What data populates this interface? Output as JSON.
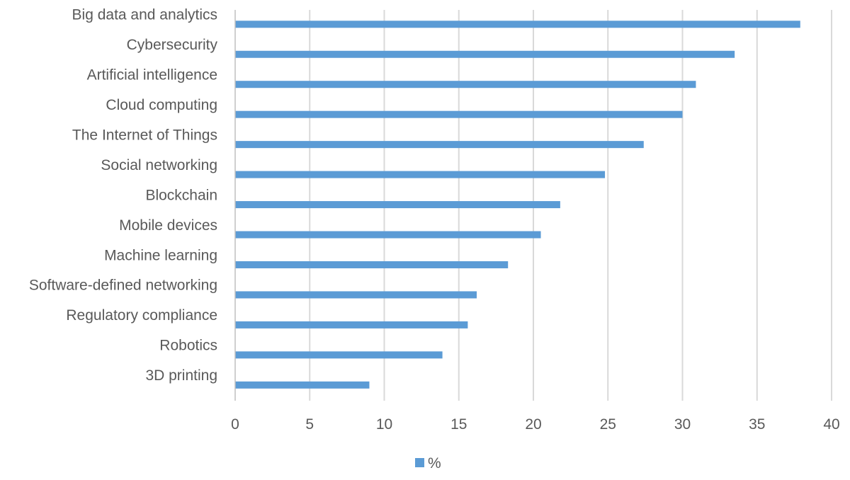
{
  "chart_data": {
    "type": "bar",
    "orientation": "horizontal",
    "categories": [
      "Big data and analytics",
      "Cybersecurity",
      "Artificial intelligence",
      "Cloud computing",
      "The Internet of Things",
      "Social networking",
      "Blockchain",
      "Mobile devices",
      "Machine learning",
      "Software-defined networking",
      "Regulatory compliance",
      "Robotics",
      "3D printing"
    ],
    "series": [
      {
        "name": "%",
        "color": "#5b9bd5",
        "values": [
          37.9,
          33.5,
          30.9,
          30.0,
          27.4,
          24.8,
          21.8,
          20.5,
          18.3,
          16.2,
          15.6,
          13.9,
          9.0
        ]
      }
    ],
    "title": "",
    "xlabel": "",
    "ylabel": "",
    "xlim": [
      0,
      40
    ],
    "x_ticks": [
      "0",
      "5",
      "10",
      "15",
      "20",
      "25",
      "30",
      "35",
      "40"
    ],
    "grid": "vertical",
    "legend": "bottom-center"
  }
}
